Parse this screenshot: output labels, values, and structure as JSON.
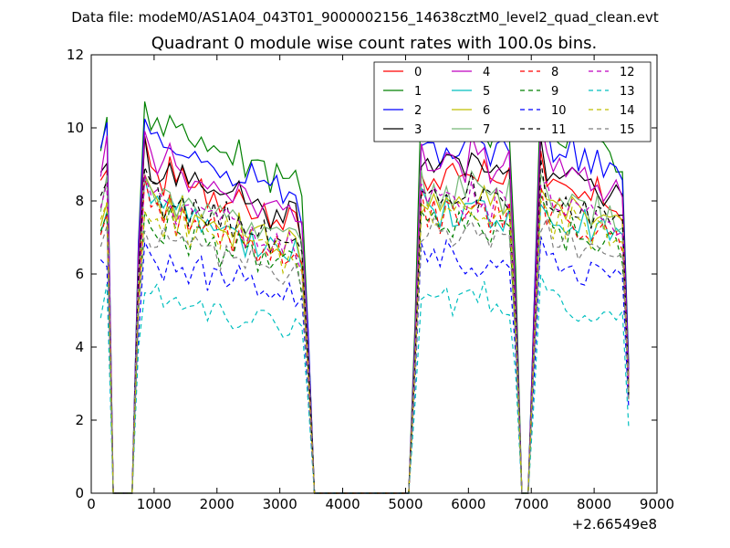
{
  "chart_data": {
    "type": "line",
    "suptitle": "Data file: modeM0/AS1A04_043T01_9000002156_14638cztM0_level2_quad_clean.evt",
    "title": "Quadrant 0 module wise count rates with 100.0s bins.",
    "xlabel": "",
    "ylabel": "",
    "xlim": [
      0,
      9000
    ],
    "ylim": [
      0,
      12
    ],
    "x_offset_label": "+2.66549e8",
    "xticks": [
      0,
      1000,
      2000,
      3000,
      4000,
      5000,
      6000,
      7000,
      8000,
      9000
    ],
    "yticks": [
      0,
      2,
      4,
      6,
      8,
      10,
      12
    ],
    "legend": {
      "location": "top-right",
      "columns": 4
    },
    "series": [
      {
        "name": "0",
        "color": "#ff0000",
        "dash": "solid",
        "level": 8.6
      },
      {
        "name": "1",
        "color": "#008000",
        "dash": "solid",
        "level": 10.0
      },
      {
        "name": "2",
        "color": "#0000ff",
        "dash": "solid",
        "level": 9.5
      },
      {
        "name": "3",
        "color": "#000000",
        "dash": "solid",
        "level": 8.8
      },
      {
        "name": "4",
        "color": "#bf00bf",
        "dash": "solid",
        "level": 9.0
      },
      {
        "name": "5",
        "color": "#00bfbf",
        "dash": "solid",
        "level": 7.7
      },
      {
        "name": "6",
        "color": "#bfbf00",
        "dash": "solid",
        "level": 7.9
      },
      {
        "name": "7",
        "color": "#76b878",
        "dash": "solid",
        "level": 8.2
      },
      {
        "name": "8",
        "color": "#ff0000",
        "dash": "dashed",
        "level": 7.6
      },
      {
        "name": "9",
        "color": "#008000",
        "dash": "dashed",
        "level": 7.2
      },
      {
        "name": "10",
        "color": "#0000ff",
        "dash": "dashed",
        "level": 6.3
      },
      {
        "name": "11",
        "color": "#000000",
        "dash": "dashed",
        "level": 8.1
      },
      {
        "name": "12",
        "color": "#bf00bf",
        "dash": "dashed",
        "level": 8.0
      },
      {
        "name": "13",
        "color": "#00bfbf",
        "dash": "dashed",
        "level": 5.3
      },
      {
        "name": "14",
        "color": "#bfbf00",
        "dash": "dashed",
        "level": 7.5
      },
      {
        "name": "15",
        "color": "#808080",
        "dash": "dashed",
        "level": 7.0
      }
    ],
    "x": [
      150,
      250,
      350,
      450,
      550,
      650,
      750,
      850,
      950,
      1050,
      1150,
      1250,
      1350,
      1450,
      1550,
      1650,
      1750,
      1850,
      1950,
      2050,
      2150,
      2250,
      2350,
      2450,
      2550,
      2650,
      2750,
      2850,
      2950,
      3050,
      3150,
      3250,
      3350,
      3450,
      3550,
      3650,
      3750,
      3850,
      3950,
      4050,
      4150,
      4250,
      4350,
      4450,
      4550,
      4650,
      4750,
      4850,
      4950,
      5050,
      5150,
      5250,
      5350,
      5450,
      5550,
      5650,
      5750,
      5850,
      5950,
      6050,
      6150,
      6250,
      6350,
      6450,
      6550,
      6650,
      6750,
      6850,
      6950,
      7050,
      7150,
      7250,
      7350,
      7450,
      7550,
      7650,
      7750,
      7850,
      7950,
      8050,
      8150,
      8250,
      8350,
      8450,
      8550
    ],
    "shape": [
      0.98,
      1.05,
      0,
      0,
      0,
      0,
      0.7,
      1.08,
      1.02,
      1.0,
      0.98,
      1.03,
      0.97,
      1.0,
      0.95,
      0.99,
      0.97,
      0.94,
      0.95,
      0.92,
      0.95,
      0.9,
      0.93,
      0.89,
      0.91,
      0.88,
      0.9,
      0.86,
      0.89,
      0.85,
      0.87,
      0.86,
      0.8,
      0.45,
      0,
      0,
      0,
      0,
      0,
      0,
      0,
      0,
      0,
      0,
      0,
      0,
      0,
      0,
      0,
      0,
      0.45,
      1.05,
      1.0,
      1.02,
      0.98,
      1.03,
      1.0,
      1.01,
      0.99,
      1.04,
      1.0,
      1.02,
      0.97,
      1.01,
      0.98,
      1.0,
      0.6,
      0,
      0,
      0.55,
      1.08,
      1.02,
      0.98,
      1.0,
      0.96,
      0.99,
      0.95,
      0.97,
      0.94,
      0.96,
      0.93,
      0.95,
      0.92,
      0.9,
      0.35
    ]
  }
}
